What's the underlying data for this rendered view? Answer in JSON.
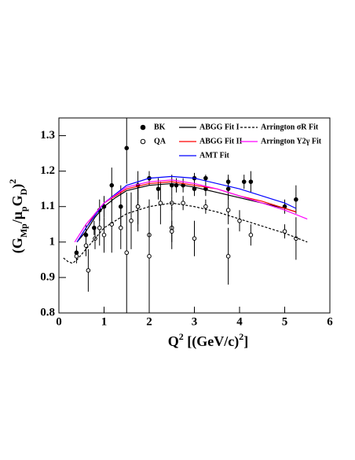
{
  "chart_data": {
    "type": "scatter",
    "xlabel": [
      {
        "text": "Q"
      },
      {
        "text": "2",
        "shift": "super"
      },
      {
        "text": " [(GeV/c)"
      },
      {
        "text": "2",
        "shift": "super"
      },
      {
        "text": "]"
      }
    ],
    "ylabel": [
      {
        "text": "(G"
      },
      {
        "text": "Mp",
        "shift": "sub"
      },
      {
        "text": "/μ"
      },
      {
        "text": "p",
        "shift": "sub"
      },
      {
        "text": "G"
      },
      {
        "text": "D",
        "shift": "sub"
      },
      {
        "text": ")"
      },
      {
        "text": "2",
        "shift": "super"
      }
    ],
    "xlim": [
      0,
      6
    ],
    "ylim": [
      0.8,
      1.35
    ],
    "xticks": [
      0,
      1,
      2,
      3,
      4,
      5,
      6
    ],
    "yticks": [
      0.8,
      0.9,
      1,
      1.1,
      1.2,
      1.3
    ],
    "series": [
      {
        "name": "BK",
        "type": "points",
        "marker": "filled",
        "color": "#000000",
        "x": [
          0.39,
          0.6,
          0.78,
          0.9,
          1.0,
          1.17,
          1.37,
          1.5,
          1.75,
          1.75,
          2.0,
          2.2,
          2.5,
          2.6,
          2.75,
          3.0,
          3.0,
          3.25,
          3.25,
          3.75,
          3.75,
          4.1,
          4.25,
          5.0,
          5.25
        ],
        "values": [
          0.97,
          1.02,
          1.04,
          1.09,
          1.1,
          1.16,
          1.1,
          1.265,
          1.16,
          1.1,
          1.18,
          1.15,
          1.16,
          1.16,
          1.16,
          1.18,
          1.15,
          1.18,
          1.15,
          1.15,
          1.17,
          1.17,
          1.17,
          1.1,
          1.12
        ],
        "errors": [
          0.02,
          0.03,
          0.02,
          0.03,
          0.03,
          0.05,
          0.06,
          0.1,
          0.04,
          0.05,
          0.02,
          0.03,
          0.03,
          0.02,
          0.02,
          0.015,
          0.02,
          0.01,
          0.02,
          0.03,
          0.02,
          0.02,
          0.03,
          0.02,
          0.04
        ]
      },
      {
        "name": "QA",
        "type": "points",
        "marker": "open",
        "color": "#000000",
        "x": [
          0.39,
          0.6,
          0.65,
          0.8,
          0.9,
          1.0,
          1.17,
          1.37,
          1.5,
          1.6,
          1.75,
          2.0,
          2.0,
          2.25,
          2.5,
          2.5,
          2.5,
          2.75,
          3.0,
          3.25,
          3.75,
          3.75,
          4.0,
          4.25,
          5.0,
          5.25
        ],
        "values": [
          0.96,
          0.99,
          0.92,
          1.01,
          1.04,
          1.02,
          1.05,
          1.04,
          0.97,
          1.06,
          1.1,
          1.02,
          0.96,
          1.11,
          1.04,
          1.03,
          1.11,
          1.11,
          1.01,
          1.1,
          0.96,
          1.09,
          1.06,
          1.02,
          1.03,
          1.01
        ],
        "errors": [
          0.02,
          0.03,
          0.06,
          0.03,
          0.05,
          0.05,
          0.08,
          0.06,
          0.17,
          0.08,
          0.07,
          0.1,
          0.16,
          0.06,
          0.06,
          0.03,
          0.02,
          0.02,
          0.05,
          0.02,
          0.08,
          0.04,
          0.03,
          0.03,
          0.02,
          0.06
        ]
      },
      {
        "name": "ABGG Fit I",
        "type": "line",
        "color": "#000000",
        "x": [
          0.4,
          0.6,
          0.8,
          1,
          1.25,
          1.5,
          2,
          2.5,
          3,
          3.5,
          4,
          4.5,
          5,
          5.25
        ],
        "values": [
          1.0,
          1.03,
          1.07,
          1.1,
          1.125,
          1.145,
          1.16,
          1.165,
          1.155,
          1.14,
          1.125,
          1.11,
          1.095,
          1.085
        ]
      },
      {
        "name": "ABGG Fit II",
        "type": "line",
        "color": "#ff0000",
        "x": [
          0.4,
          0.6,
          0.8,
          1,
          1.5,
          2,
          2.5,
          3,
          3.5,
          4,
          4.5,
          5,
          5.25
        ],
        "values": [
          1.0,
          1.04,
          1.08,
          1.11,
          1.15,
          1.165,
          1.17,
          1.16,
          1.15,
          1.13,
          1.115,
          1.095,
          1.085
        ]
      },
      {
        "name": "AMT Fit",
        "type": "line",
        "color": "#0000ff",
        "x": [
          0.4,
          0.6,
          0.8,
          1,
          1.5,
          2,
          2.5,
          3,
          3.5,
          4,
          4.5,
          5,
          5.25
        ],
        "values": [
          1.0,
          1.04,
          1.075,
          1.11,
          1.16,
          1.18,
          1.185,
          1.18,
          1.165,
          1.15,
          1.13,
          1.11,
          1.095
        ]
      },
      {
        "name": "Arrington σR Fit",
        "type": "line",
        "dashed": true,
        "color": "#000000",
        "x": [
          0.1,
          0.2,
          0.3,
          0.4,
          0.6,
          0.8,
          1,
          1.5,
          2,
          2.5,
          3,
          3.5,
          4,
          4.5,
          5,
          5.5
        ],
        "values": [
          0.955,
          0.945,
          0.94,
          0.95,
          0.98,
          1.01,
          1.04,
          1.08,
          1.1,
          1.11,
          1.1,
          1.085,
          1.065,
          1.045,
          1.025,
          1.0
        ]
      },
      {
        "name": "Arrington Y2γ Fit",
        "type": "line",
        "color": "#ff00ff",
        "x": [
          0.35,
          0.6,
          0.8,
          1,
          1.5,
          2,
          2.5,
          3,
          3.5,
          4,
          4.5,
          5,
          5.5
        ],
        "values": [
          1.0,
          1.05,
          1.08,
          1.11,
          1.155,
          1.17,
          1.175,
          1.165,
          1.15,
          1.13,
          1.11,
          1.09,
          1.065
        ]
      }
    ]
  }
}
